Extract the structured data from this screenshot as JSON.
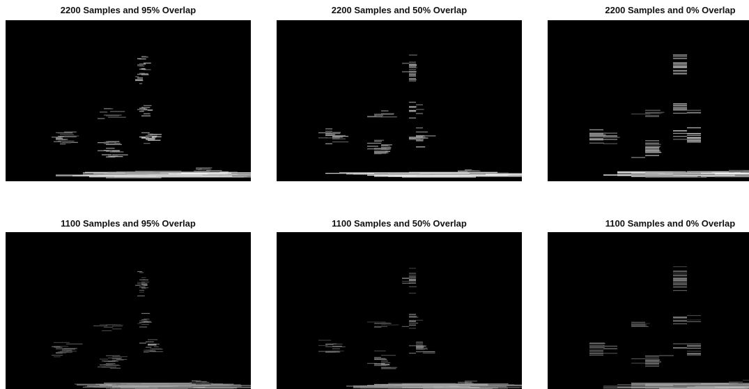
{
  "panels": [
    {
      "title": "2200 Samples and 95% Overlap"
    },
    {
      "title": "2200 Samples and 50% Overlap"
    },
    {
      "title": "2200 Samples and 0% Overlap"
    },
    {
      "title": "1100 Samples and 95% Overlap"
    },
    {
      "title": "1100 Samples and 50% Overlap"
    },
    {
      "title": "1100 Samples and 0% Overlap"
    }
  ]
}
